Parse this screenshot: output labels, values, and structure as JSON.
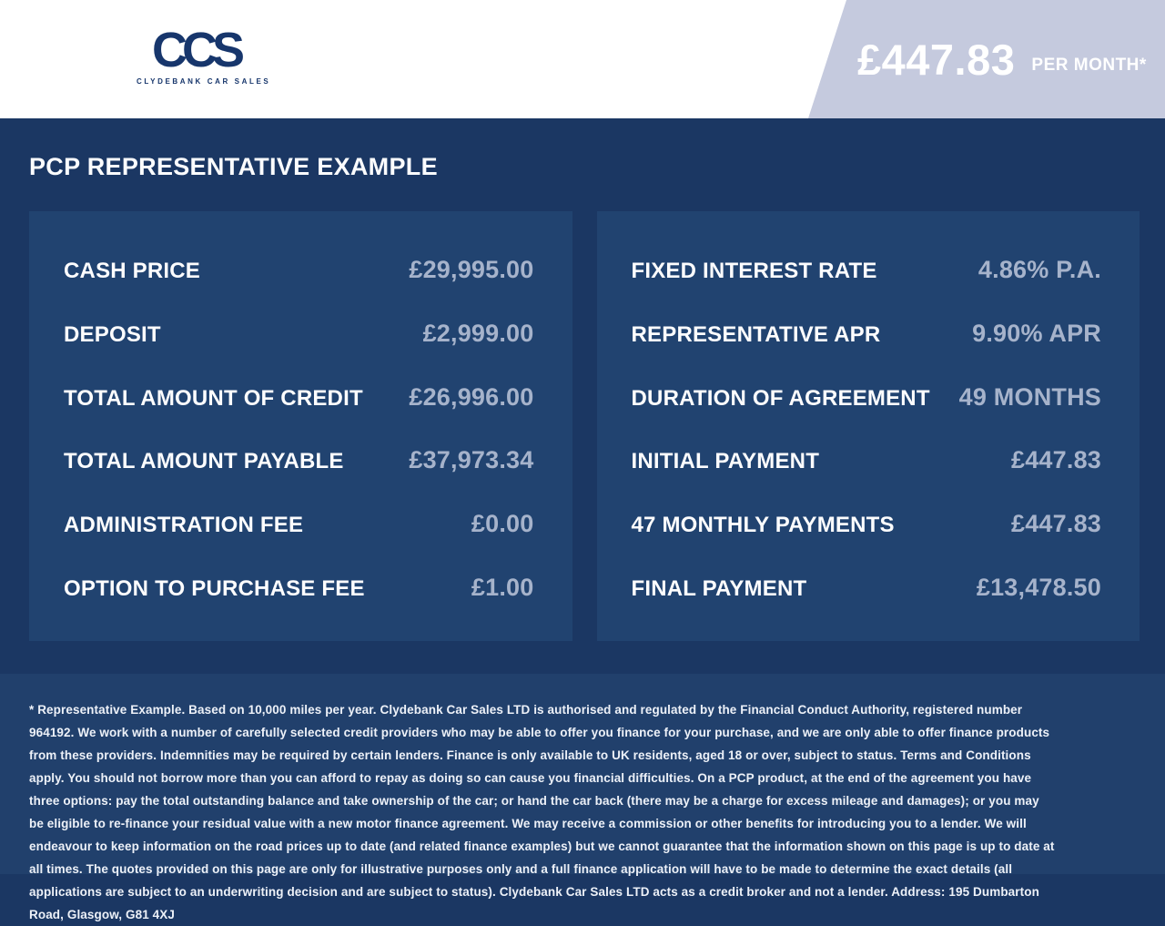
{
  "header": {
    "logo": {
      "text": "CCS",
      "subtext": "CLYDEBANK CAR SALES"
    },
    "price_banner": {
      "amount": "£447.83",
      "period": "PER MONTH*"
    }
  },
  "title": "PCP REPRESENTATIVE EXAMPLE",
  "panels": {
    "left": {
      "rows": [
        {
          "label": "CASH PRICE",
          "value": "£29,995.00"
        },
        {
          "label": "DEPOSIT",
          "value": "£2,999.00"
        },
        {
          "label": "TOTAL AMOUNT OF CREDIT",
          "value": "£26,996.00"
        },
        {
          "label": "TOTAL AMOUNT PAYABLE",
          "value": "£37,973.34"
        },
        {
          "label": "ADMINISTRATION FEE",
          "value": "£0.00"
        },
        {
          "label": "OPTION TO PURCHASE FEE",
          "value": "£1.00"
        }
      ]
    },
    "right": {
      "rows": [
        {
          "label": "FIXED INTEREST RATE",
          "value": "4.86% P.A."
        },
        {
          "label": "REPRESENTATIVE APR",
          "value": "9.90% APR"
        },
        {
          "label": "DURATION OF AGREEMENT",
          "value": "49 MONTHS"
        },
        {
          "label": "INITIAL PAYMENT",
          "value": "£447.83"
        },
        {
          "label": "47 MONTHLY PAYMENTS",
          "value": "£447.83"
        },
        {
          "label": "FINAL PAYMENT",
          "value": "£13,478.50"
        }
      ]
    }
  },
  "footer": {
    "disclaimer": "* Representative Example. Based on 10,000 miles per year. Clydebank Car Sales LTD is authorised and regulated by the Financial Conduct Authority, registered number 964192. We work with a number of carefully selected credit providers who may be able to offer you finance for your purchase, and we are only able to offer finance products from these providers. Indemnities may be required by certain lenders. Finance is only available to UK residents, aged 18 or over, subject to status. Terms and Conditions apply. You should not borrow more than you can afford to repay as doing so can cause you financial difficulties. On a PCP product, at the end of the agreement you have three options: pay the total outstanding balance and take ownership of the car; or hand the car back (there may be a charge for excess mileage and damages); or you may be eligible to re-finance your residual value with a new motor finance agreement. We may receive a commission or other benefits for introducing you to a lender. We will endeavour to keep information on the road prices up to date (and related finance examples) but we cannot guarantee that the information shown on this page is up to date at all times. The quotes provided on this page are only for illustrative purposes only and a full finance application will have to be made to determine the exact details (all applications are subject to an underwriting decision and are subject to status). Clydebank Car Sales LTD acts as a credit broker and not a lender. Address: 195 Dumbarton Road, Glasgow, G81 4XJ"
  },
  "colors": {
    "page_background": "#1b3763",
    "panel_background": "#214370",
    "footer_background": "#21406c",
    "header_background": "#ffffff",
    "price_banner_background": "#c5cade",
    "logo_navy": "#17366c",
    "label_text": "#fdfdfe",
    "value_text": "#a6b3cb"
  }
}
